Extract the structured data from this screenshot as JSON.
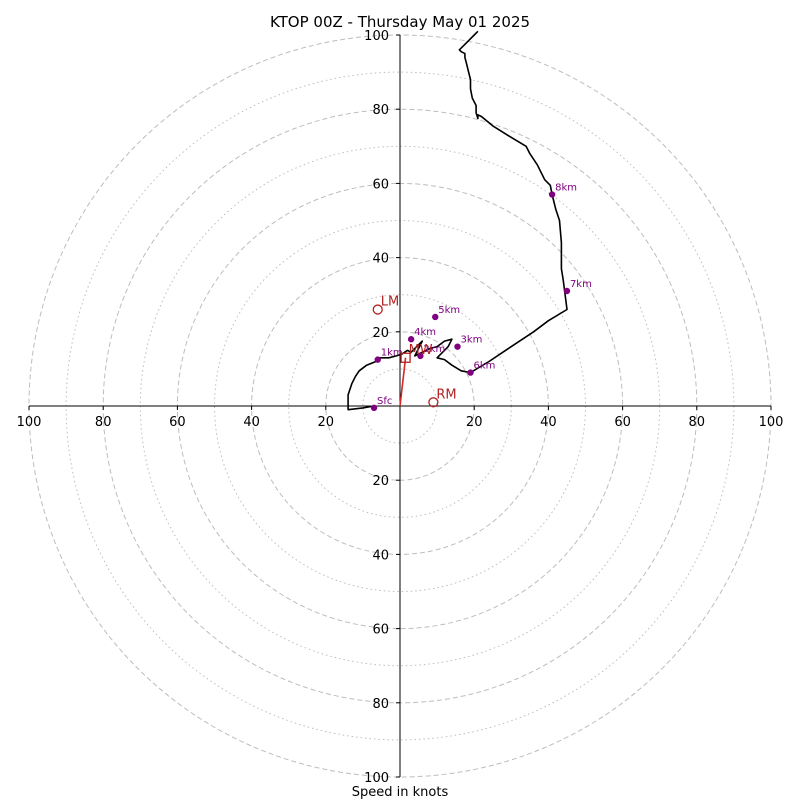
{
  "chart_data": {
    "type": "hodograph",
    "title": "KTOP 00Z - Thursday May 01 2025",
    "xlabel": "Speed in knots",
    "ylabel": "",
    "xlim": [
      -100,
      100
    ],
    "ylim": [
      -100,
      100
    ],
    "x_ticks": [
      {
        "value": -100,
        "label": "100"
      },
      {
        "value": -80,
        "label": "80"
      },
      {
        "value": -60,
        "label": "60"
      },
      {
        "value": -40,
        "label": "40"
      },
      {
        "value": -20,
        "label": "20"
      },
      {
        "value": 20,
        "label": "20"
      },
      {
        "value": 40,
        "label": "40"
      },
      {
        "value": 60,
        "label": "60"
      },
      {
        "value": 80,
        "label": "80"
      },
      {
        "value": 100,
        "label": "100"
      }
    ],
    "y_ticks": [
      {
        "value": 100,
        "label": "100"
      },
      {
        "value": 80,
        "label": "80"
      },
      {
        "value": 60,
        "label": "60"
      },
      {
        "value": 40,
        "label": "40"
      },
      {
        "value": 20,
        "label": "20"
      },
      {
        "value": -20,
        "label": "20"
      },
      {
        "value": -40,
        "label": "40"
      },
      {
        "value": -60,
        "label": "60"
      },
      {
        "value": -80,
        "label": "80"
      },
      {
        "value": -100,
        "label": "100"
      }
    ],
    "rings": {
      "major": [
        20,
        40,
        60,
        80,
        100
      ],
      "minor": [
        10,
        30,
        50,
        70,
        90
      ],
      "major_style": "dashed",
      "minor_style": "dotted"
    },
    "trace": [
      [
        -7,
        0
      ],
      [
        -10,
        -0.5
      ],
      [
        -14,
        -1
      ],
      [
        -14,
        3
      ],
      [
        -13,
        6
      ],
      [
        -12,
        8
      ],
      [
        -11,
        9.5
      ],
      [
        -9,
        11
      ],
      [
        -6.5,
        12
      ],
      [
        -6,
        13
      ],
      [
        -4.5,
        13
      ],
      [
        -3,
        13
      ],
      [
        -1,
        13.5
      ],
      [
        0.5,
        14
      ],
      [
        2,
        15
      ],
      [
        3,
        14.5
      ],
      [
        4.5,
        16
      ],
      [
        6,
        17.5
      ],
      [
        4,
        13.5
      ],
      [
        6,
        14.5
      ],
      [
        8,
        15.5
      ],
      [
        10,
        16
      ],
      [
        12,
        17.5
      ],
      [
        14,
        18
      ],
      [
        13,
        16
      ],
      [
        11,
        14
      ],
      [
        10,
        13
      ],
      [
        12,
        12.5
      ],
      [
        14,
        11
      ],
      [
        16.5,
        9.5
      ],
      [
        19,
        9
      ],
      [
        24,
        12
      ],
      [
        30,
        16
      ],
      [
        36,
        20
      ],
      [
        40,
        23
      ],
      [
        45,
        26
      ],
      [
        44.5,
        30
      ],
      [
        44,
        34
      ],
      [
        43.5,
        37
      ],
      [
        43.5,
        40
      ],
      [
        43.5,
        44
      ],
      [
        43,
        50
      ],
      [
        42,
        53
      ],
      [
        41,
        57
      ],
      [
        40.5,
        59.5
      ],
      [
        39,
        61
      ],
      [
        37,
        65
      ],
      [
        35,
        68
      ],
      [
        34.5,
        69
      ],
      [
        34,
        70
      ],
      [
        29,
        73
      ],
      [
        25,
        75.5
      ],
      [
        22,
        78
      ],
      [
        21,
        78.5
      ],
      [
        21,
        77.5
      ],
      [
        20.5,
        79
      ],
      [
        20.5,
        81
      ],
      [
        19.5,
        83
      ],
      [
        19,
        85.5
      ],
      [
        19,
        88
      ],
      [
        18.5,
        90
      ],
      [
        18,
        92
      ],
      [
        17.5,
        94
      ],
      [
        17.5,
        95
      ],
      [
        16.5,
        95.5
      ],
      [
        16,
        96
      ],
      [
        18,
        98
      ],
      [
        20,
        100
      ],
      [
        21,
        101
      ]
    ],
    "height_markers": [
      {
        "label": "Sfc",
        "u": -7,
        "v": -0.5
      },
      {
        "label": "1km",
        "u": -6,
        "v": 12.5
      },
      {
        "label": "2km",
        "u": 5.5,
        "v": 13.5
      },
      {
        "label": "3km",
        "u": 15.5,
        "v": 16
      },
      {
        "label": "4km",
        "u": 3,
        "v": 18
      },
      {
        "label": "5km",
        "u": 9.5,
        "v": 24
      },
      {
        "label": "6km",
        "u": 19,
        "v": 9
      },
      {
        "label": "7km",
        "u": 45,
        "v": 31
      },
      {
        "label": "8km",
        "u": 41,
        "v": 57
      }
    ],
    "motion_markers": [
      {
        "label": "RM",
        "u": 9,
        "v": 1,
        "shape": "circle"
      },
      {
        "label": "LM",
        "u": -6,
        "v": 26,
        "shape": "circle"
      },
      {
        "label": "MW",
        "u": 1.5,
        "v": 13,
        "shape": "square"
      }
    ],
    "shear_vector": {
      "from": [
        0,
        0
      ],
      "to": [
        1.5,
        13
      ]
    },
    "colors": {
      "trace": "#000000",
      "height_marker": "#800080",
      "storm_motion": "#b22222",
      "shear_vector": "#d62728",
      "grid": "#bdbdbd",
      "axes": "#000000"
    }
  }
}
